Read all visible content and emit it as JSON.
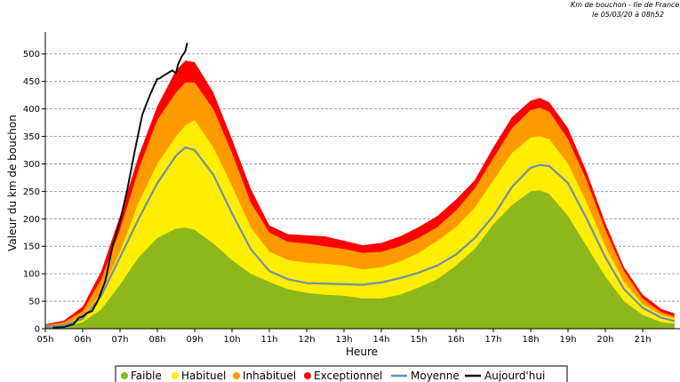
{
  "header": {
    "line1": "Km de bouchon - Ile de France",
    "line2": "le 05/03/20 à 08h52"
  },
  "chart_data": {
    "type": "area",
    "xlabel": "Heure",
    "ylabel": "Valeur du  km de bouchon",
    "xlim": [
      5,
      22
    ],
    "ylim": [
      0,
      540
    ],
    "x_ticks": [
      "05h",
      "06h",
      "07h",
      "08h",
      "09h",
      "10h",
      "11h",
      "12h",
      "13h",
      "14h",
      "15h",
      "16h",
      "17h",
      "18h",
      "19h",
      "20h",
      "21h"
    ],
    "y_ticks": [
      0,
      50,
      100,
      150,
      200,
      250,
      300,
      350,
      400,
      450,
      500
    ],
    "grid": true,
    "legend_position": "bottom",
    "x": [
      5,
      5.5,
      6,
      6.5,
      7,
      7.5,
      8,
      8.5,
      8.75,
      9,
      9.5,
      10,
      10.5,
      11,
      11.5,
      12,
      12.5,
      13,
      13.5,
      14,
      14.5,
      15,
      15.5,
      16,
      16.5,
      17,
      17.5,
      18,
      18.25,
      18.5,
      19,
      19.5,
      20,
      20.5,
      21,
      21.5,
      21.85
    ],
    "series": [
      {
        "name": "Faible",
        "color": "#8db81c",
        "values": [
          2,
          4,
          12,
          35,
          80,
          130,
          165,
          182,
          184,
          180,
          155,
          125,
          100,
          85,
          72,
          65,
          62,
          60,
          55,
          55,
          62,
          75,
          90,
          115,
          145,
          190,
          225,
          250,
          252,
          245,
          205,
          150,
          95,
          50,
          25,
          12,
          9
        ]
      },
      {
        "name": "Habituel",
        "color": "#ffee00",
        "values": [
          4,
          8,
          22,
          65,
          140,
          230,
          300,
          350,
          370,
          380,
          330,
          260,
          185,
          140,
          125,
          120,
          118,
          115,
          108,
          112,
          122,
          138,
          160,
          185,
          220,
          270,
          320,
          348,
          350,
          345,
          300,
          230,
          150,
          85,
          45,
          25,
          19
        ]
      },
      {
        "name": "Inhabituel",
        "color": "#ff9900",
        "values": [
          6,
          12,
          32,
          90,
          180,
          290,
          380,
          430,
          448,
          448,
          400,
          320,
          230,
          175,
          158,
          155,
          150,
          145,
          138,
          140,
          150,
          165,
          185,
          215,
          255,
          310,
          365,
          398,
          402,
          395,
          345,
          270,
          180,
          105,
          55,
          30,
          22
        ]
      },
      {
        "name": "Exceptionnel",
        "color": "#ff0000",
        "values": [
          8,
          15,
          40,
          105,
          205,
          315,
          405,
          470,
          488,
          485,
          430,
          345,
          255,
          188,
          172,
          170,
          168,
          160,
          152,
          156,
          168,
          185,
          205,
          235,
          270,
          330,
          385,
          415,
          420,
          412,
          365,
          285,
          192,
          112,
          62,
          36,
          28
        ]
      }
    ],
    "lines": [
      {
        "name": "Moyenne",
        "color": "#6f8fa8",
        "x": [
          5,
          5.5,
          6,
          6.5,
          7,
          7.5,
          8,
          8.5,
          8.75,
          9,
          9.5,
          10,
          10.5,
          11,
          11.5,
          12,
          12.5,
          13,
          13.5,
          14,
          14.5,
          15,
          15.5,
          16,
          16.5,
          17,
          17.5,
          18,
          18.25,
          18.5,
          19,
          19.5,
          20,
          20.5,
          21,
          21.5,
          21.85
        ],
        "values": [
          3,
          6,
          18,
          60,
          130,
          200,
          265,
          315,
          330,
          325,
          280,
          210,
          145,
          105,
          90,
          83,
          82,
          81,
          80,
          84,
          92,
          102,
          115,
          135,
          165,
          205,
          258,
          293,
          298,
          296,
          265,
          200,
          130,
          72,
          38,
          20,
          14
        ]
      },
      {
        "name": "Aujourd'hui",
        "color": "#111111",
        "x": [
          5.2,
          5.5,
          5.75,
          5.9,
          6.0,
          6.1,
          6.25,
          6.4,
          6.6,
          6.8,
          7.0,
          7.2,
          7.4,
          7.6,
          7.8,
          8.0,
          8.05,
          8.2,
          8.4,
          8.5,
          8.55,
          8.65,
          8.75,
          8.8
        ],
        "values": [
          2,
          3,
          8,
          20,
          22,
          28,
          32,
          50,
          85,
          150,
          195,
          255,
          325,
          390,
          425,
          455,
          455,
          462,
          470,
          465,
          480,
          495,
          505,
          520
        ]
      }
    ]
  }
}
